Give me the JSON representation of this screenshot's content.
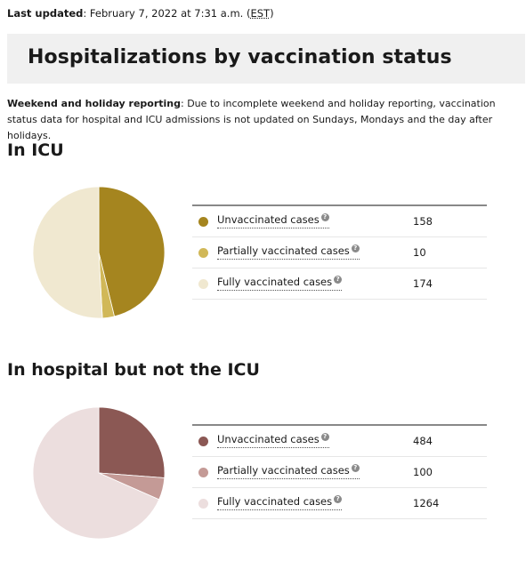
{
  "last_updated": {
    "label": "Last updated",
    "text": ": February 7, 2022 at 7:31 a.m. (",
    "tz": "EST",
    "close": ")"
  },
  "page_title": "Hospitalizations by vaccination status",
  "note": {
    "label": "Weekend and holiday reporting",
    "text": ": Due to incomplete weekend and holiday reporting, vaccination status data for hospital and ICU admissions is not updated on Sundays, Mondays and the day after holidays."
  },
  "help_glyph": "?",
  "chart_data": [
    {
      "type": "pie",
      "title": "In ICU",
      "categories": [
        "Unvaccinated cases",
        "Partially vaccinated cases",
        "Fully vaccinated cases"
      ],
      "values": [
        158,
        10,
        174
      ],
      "colors": [
        "#a5851f",
        "#d1b858",
        "#f0e8d0"
      ]
    },
    {
      "type": "pie",
      "title": "In hospital but not the ICU",
      "categories": [
        "Unvaccinated cases",
        "Partially vaccinated cases",
        "Fully vaccinated cases"
      ],
      "values": [
        484,
        100,
        1264
      ],
      "colors": [
        "#8b5854",
        "#c49a96",
        "#ecdede"
      ]
    }
  ]
}
